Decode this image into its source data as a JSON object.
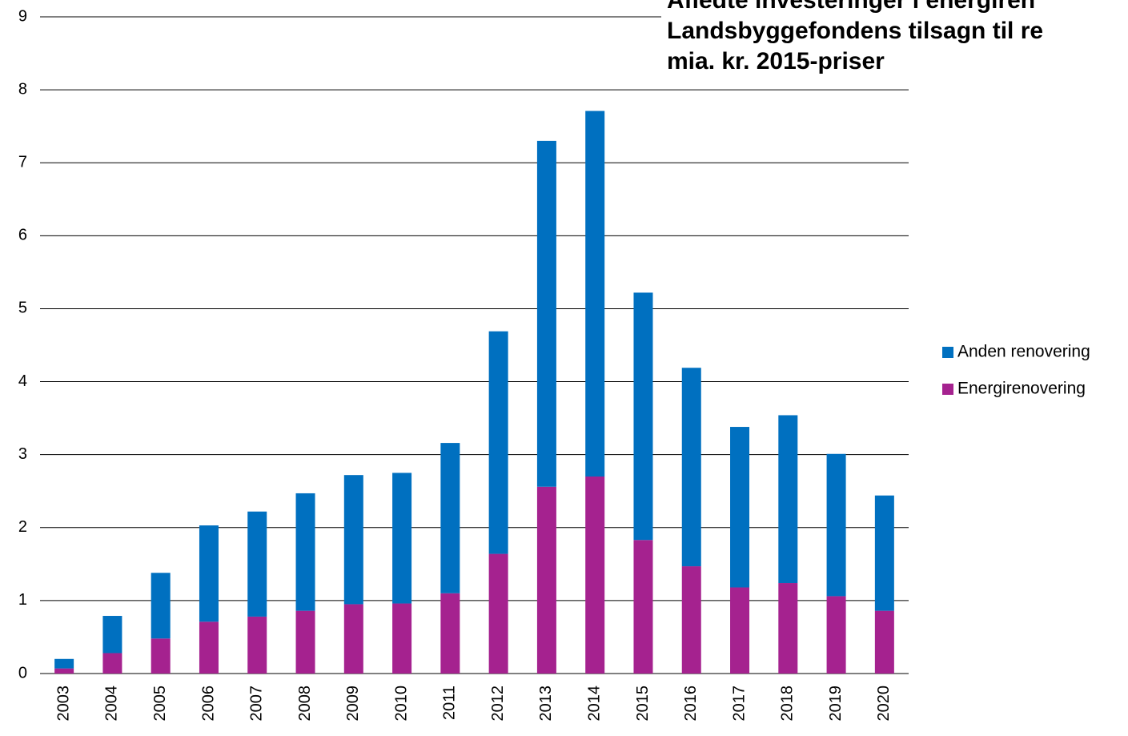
{
  "chart_data": {
    "type": "stacked-bar",
    "title": [
      "Afledte investeringer i energiren",
      "Landsbyggefondens tilsagn til re",
      "mia. kr. 2015-priser"
    ],
    "categories": [
      "2003",
      "2004",
      "2005",
      "2006",
      "2007",
      "2008",
      "2009",
      "2010",
      "2011",
      "2012",
      "2013",
      "2014",
      "2015",
      "2016",
      "2017",
      "2018",
      "2019",
      "2020"
    ],
    "series": [
      {
        "name": "Energirenovering",
        "color": "#a5228f",
        "values": [
          0.07,
          0.28,
          0.48,
          0.71,
          0.78,
          0.86,
          0.95,
          0.96,
          1.1,
          1.64,
          2.56,
          2.7,
          1.83,
          1.47,
          1.18,
          1.24,
          1.06,
          0.86
        ]
      },
      {
        "name": "Anden renovering",
        "color": "#0070c0",
        "values": [
          0.13,
          0.51,
          0.9,
          1.32,
          1.44,
          1.61,
          1.77,
          1.79,
          2.06,
          3.05,
          4.74,
          5.01,
          3.39,
          2.72,
          2.2,
          2.3,
          1.95,
          1.58
        ]
      }
    ],
    "ylim": [
      0,
      9
    ],
    "yticks": [
      0,
      1,
      2,
      3,
      4,
      5,
      6,
      7,
      8,
      9
    ],
    "grid": true,
    "legend": "right"
  }
}
